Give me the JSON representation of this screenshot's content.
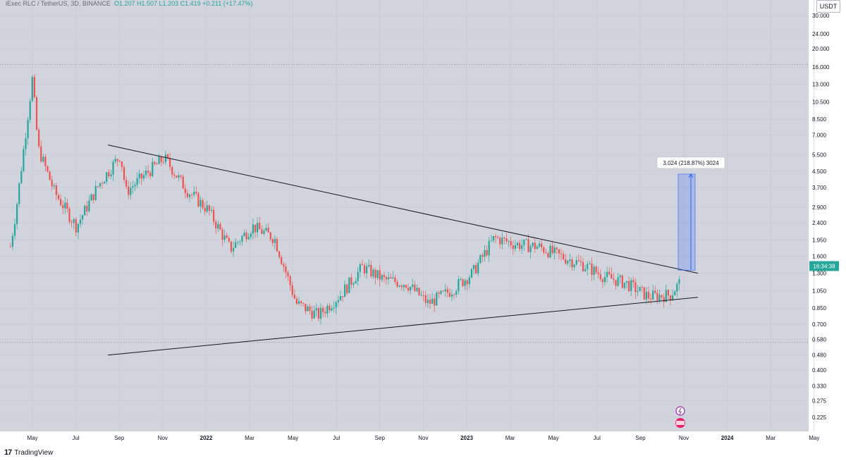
{
  "header": {
    "symbol": "iExec RLC / TetherUS",
    "interval": "3D",
    "exchange": "BINANCE",
    "open": "O1.207",
    "high": "H1.507",
    "low": "L1.203",
    "close": "C1.419",
    "change": "+0.211 (+17.47%)"
  },
  "price_unit": "USDT",
  "price_tag": "16:34:38",
  "measure_label": "3.024 (218.87%) 3024",
  "footer": {
    "brand": "TradingView"
  },
  "colors": {
    "up": "#26a69a",
    "down": "#ef5350",
    "measure": "#2962ff",
    "background": "#d1d4dc",
    "event_purple": "#9c27b0",
    "event_red": "#e91e63"
  },
  "chart_data": {
    "type": "candlestick",
    "scale": "log",
    "price_axis_ticks": [
      "30.000",
      "24.000",
      "20.000",
      "16.000",
      "13.000",
      "10.500",
      "8.500",
      "7.000",
      "5.500",
      "4.500",
      "3.700",
      "2.900",
      "2.400",
      "1.950",
      "1.600",
      "1.300",
      "1.050",
      "0.850",
      "0.700",
      "0.580",
      "0.480",
      "0.400",
      "0.330",
      "0.275",
      "0.225"
    ],
    "time_axis_ticks": [
      "May",
      "Jul",
      "Sep",
      "Nov",
      "2022",
      "Mar",
      "May",
      "Jul",
      "Sep",
      "Nov",
      "2023",
      "Mar",
      "May",
      "Jul",
      "Sep",
      "Nov",
      "2024",
      "Mar",
      "May"
    ],
    "horizontal_levels": [
      16.5,
      0.56
    ],
    "trendlines": [
      {
        "name": "descending resistance",
        "from": [
          "Aug 2021",
          6.2
        ],
        "to": [
          "Nov 2023",
          1.3
        ]
      },
      {
        "name": "ascending support",
        "from": [
          "Aug 2021",
          0.48
        ],
        "to": [
          "Nov 2023",
          0.97
        ]
      }
    ],
    "measure": {
      "from": 1.35,
      "to": 4.35,
      "change": "3.024 (218.87%)"
    },
    "price_path": [
      {
        "date": "Apr 2021",
        "price": 1.8
      },
      {
        "date": "Apr 2021",
        "price": 2.8
      },
      {
        "date": "May 2021",
        "price": 14.0
      },
      {
        "date": "May 2021",
        "price": 6.0
      },
      {
        "date": "Jun 2021",
        "price": 3.5
      },
      {
        "date": "Jul 2021",
        "price": 2.3
      },
      {
        "date": "Aug 2021",
        "price": 3.8
      },
      {
        "date": "Sep 2021",
        "price": 5.5
      },
      {
        "date": "Sep 2021",
        "price": 3.5
      },
      {
        "date": "Oct 2021",
        "price": 4.2
      },
      {
        "date": "Nov 2021",
        "price": 5.3
      },
      {
        "date": "Dec 2021",
        "price": 3.6
      },
      {
        "date": "Jan 2022",
        "price": 2.8
      },
      {
        "date": "Feb 2022",
        "price": 1.75
      },
      {
        "date": "Mar 2022",
        "price": 2.3
      },
      {
        "date": "Apr 2022",
        "price": 2.0
      },
      {
        "date": "May 2022",
        "price": 0.9
      },
      {
        "date": "Jun 2022",
        "price": 0.78
      },
      {
        "date": "Jul 2022",
        "price": 1.0
      },
      {
        "date": "Aug 2022",
        "price": 1.4
      },
      {
        "date": "Sep 2022",
        "price": 1.2
      },
      {
        "date": "Oct 2022",
        "price": 1.15
      },
      {
        "date": "Nov 2022",
        "price": 0.9
      },
      {
        "date": "Dec 2022",
        "price": 1.05
      },
      {
        "date": "Jan 2023",
        "price": 1.3
      },
      {
        "date": "Feb 2023",
        "price": 2.0
      },
      {
        "date": "Mar 2023",
        "price": 1.85
      },
      {
        "date": "Apr 2023",
        "price": 1.8
      },
      {
        "date": "May 2023",
        "price": 1.6
      },
      {
        "date": "Jun 2023",
        "price": 1.45
      },
      {
        "date": "Jul 2023",
        "price": 1.25
      },
      {
        "date": "Aug 2023",
        "price": 1.15
      },
      {
        "date": "Sep 2023",
        "price": 0.98
      },
      {
        "date": "Oct 2023",
        "price": 1.0
      },
      {
        "date": "Nov 2023",
        "price": 1.419
      }
    ]
  }
}
